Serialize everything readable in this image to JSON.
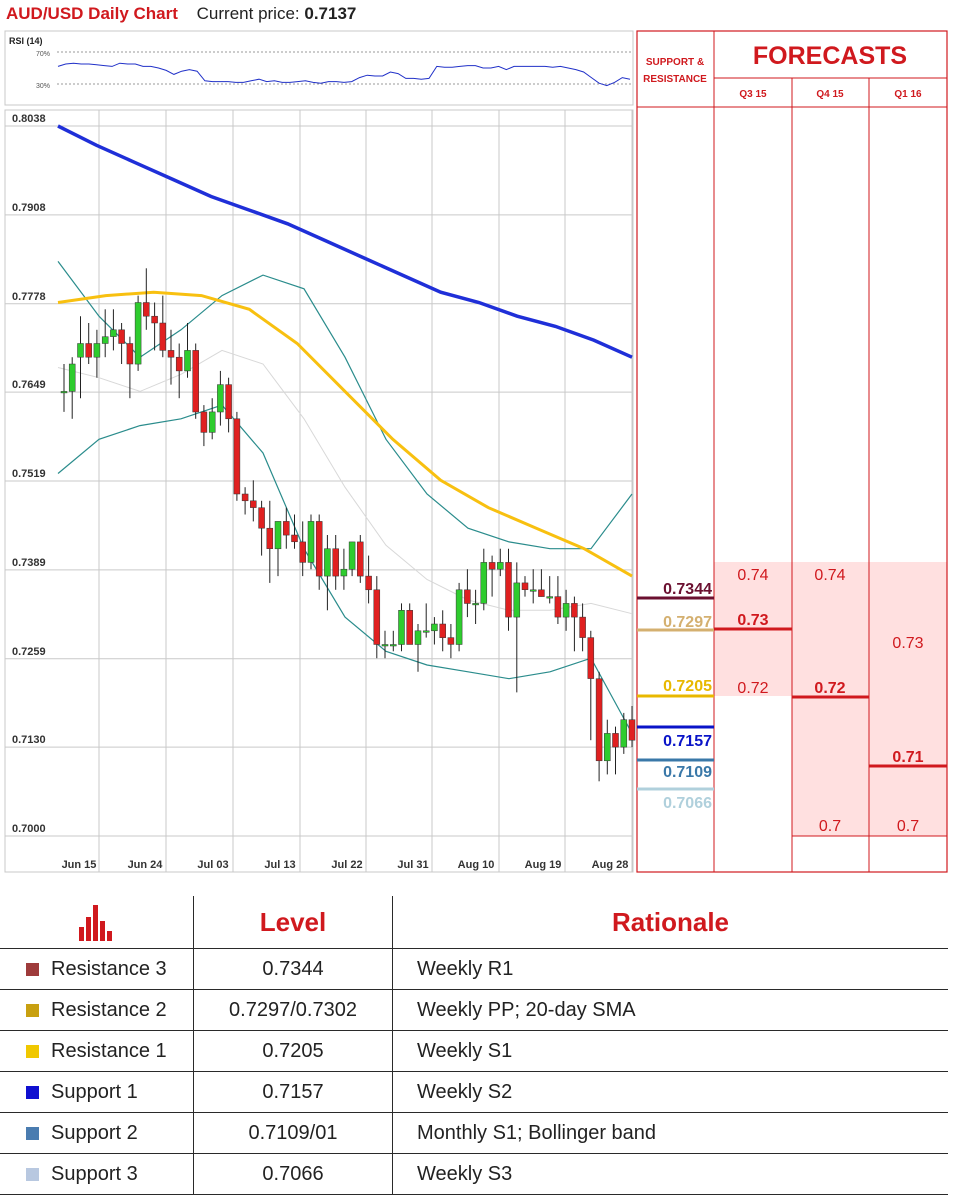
{
  "header": {
    "title": "AUD/USD Daily Chart",
    "price_label": "Current price:",
    "price": "0.7137"
  },
  "colors": {
    "up": "#2ecc2e",
    "down": "#e02020",
    "sma200": "#1f2fd8",
    "sma50": "#f8c010",
    "boll": "#2a8c8c",
    "sma20": "#d0d0d0",
    "accent": "#d0191e"
  },
  "forecasts": {
    "title": "FORECASTS",
    "sr_label": "SUPPORT & RESISTANCE",
    "quarters": [
      "Q3 15",
      "Q4 15",
      "Q1 16"
    ],
    "q3": {
      "high": "0.74",
      "mid": "0.73",
      "low": "0.72"
    },
    "q4": {
      "high": "0.74",
      "mid": "0.72",
      "low": "0.7"
    },
    "q1": {
      "high": "0.73",
      "mid": "0.71",
      "low": "0.7"
    }
  },
  "levels_chart": [
    {
      "value": "0.7344",
      "color": "#6b1030"
    },
    {
      "value": "0.7297",
      "color": "#d4b070"
    },
    {
      "value": "0.7205",
      "color": "#e8b800"
    },
    {
      "value": "0.7157",
      "color": "#0a14c8"
    },
    {
      "value": "0.7109",
      "color": "#3a78a8"
    },
    {
      "value": "0.7066",
      "color": "#b0d0dc"
    }
  ],
  "table": {
    "headers": {
      "level": "Level",
      "rationale": "Rationale"
    },
    "rows": [
      {
        "name": "Resistance 3",
        "level": "0.7344",
        "rationale": "Weekly R1",
        "color": "#9e3b3b"
      },
      {
        "name": "Resistance 2",
        "level": "0.7297/0.7302",
        "rationale": "Weekly PP; 20-day SMA",
        "color": "#c8a010"
      },
      {
        "name": "Resistance 1",
        "level": "0.7205",
        "rationale": "Weekly S1",
        "color": "#f0c800"
      },
      {
        "name": "Support 1",
        "level": "0.7157",
        "rationale": "Weekly S2",
        "color": "#1010d0"
      },
      {
        "name": "Support 2",
        "level": "0.7109/01",
        "rationale": "Monthly S1; Bollinger band",
        "color": "#4a7cb0"
      },
      {
        "name": "Support 3",
        "level": "0.7066",
        "rationale": "Weekly S3",
        "color": "#b8c8e0"
      }
    ]
  },
  "chart_data": [
    {
      "type": "line",
      "title": "RSI (14)",
      "ticks": [
        "70%",
        "30%"
      ],
      "ylim": [
        0,
        100
      ],
      "values": [
        52,
        55,
        56,
        55,
        55,
        54,
        53,
        52,
        56,
        55,
        55,
        52,
        52,
        50,
        47,
        42,
        46,
        48,
        46,
        34,
        33,
        33,
        33,
        32,
        32,
        34,
        36,
        33,
        34,
        32,
        32,
        33,
        34,
        32,
        31,
        33,
        33,
        32,
        33,
        38,
        41,
        40,
        40,
        45,
        43,
        37,
        37,
        36,
        37,
        52,
        51,
        51,
        52,
        53,
        53,
        50,
        50,
        52,
        48,
        52,
        52,
        52,
        52,
        52,
        51,
        52,
        50,
        48,
        45,
        38,
        31,
        28,
        32,
        38,
        36
      ]
    },
    {
      "type": "candlestick",
      "title": "AUD/USD Daily Chart",
      "x_labels": [
        "Jun 15",
        "Jun 24",
        "Jul 03",
        "Jul 13",
        "Jul 22",
        "Jul 31",
        "Aug 10",
        "Aug 19",
        "Aug 28"
      ],
      "y_ticks": [
        "0.8038",
        "0.7908",
        "0.7778",
        "0.7649",
        "0.7519",
        "0.7389",
        "0.7259",
        "0.7130",
        "0.7000"
      ],
      "ylim": [
        0.7,
        0.8038
      ],
      "ohlc": [
        [
          0.765,
          0.769,
          0.762,
          0.765
        ],
        [
          0.765,
          0.77,
          0.761,
          0.769
        ],
        [
          0.77,
          0.776,
          0.764,
          0.772
        ],
        [
          0.772,
          0.775,
          0.769,
          0.77
        ],
        [
          0.77,
          0.774,
          0.767,
          0.772
        ],
        [
          0.772,
          0.777,
          0.77,
          0.773
        ],
        [
          0.773,
          0.777,
          0.771,
          0.774
        ],
        [
          0.774,
          0.775,
          0.769,
          0.772
        ],
        [
          0.772,
          0.773,
          0.764,
          0.769
        ],
        [
          0.769,
          0.779,
          0.768,
          0.778
        ],
        [
          0.778,
          0.783,
          0.774,
          0.776
        ],
        [
          0.776,
          0.778,
          0.771,
          0.775
        ],
        [
          0.775,
          0.779,
          0.77,
          0.771
        ],
        [
          0.771,
          0.774,
          0.766,
          0.77
        ],
        [
          0.77,
          0.772,
          0.764,
          0.768
        ],
        [
          0.768,
          0.775,
          0.767,
          0.771
        ],
        [
          0.771,
          0.772,
          0.761,
          0.762
        ],
        [
          0.762,
          0.763,
          0.757,
          0.759
        ],
        [
          0.759,
          0.764,
          0.758,
          0.762
        ],
        [
          0.762,
          0.768,
          0.76,
          0.766
        ],
        [
          0.766,
          0.767,
          0.759,
          0.761
        ],
        [
          0.761,
          0.762,
          0.749,
          0.75
        ],
        [
          0.75,
          0.751,
          0.747,
          0.749
        ],
        [
          0.749,
          0.752,
          0.746,
          0.748
        ],
        [
          0.748,
          0.749,
          0.741,
          0.745
        ],
        [
          0.745,
          0.749,
          0.737,
          0.742
        ],
        [
          0.742,
          0.746,
          0.738,
          0.746
        ],
        [
          0.746,
          0.748,
          0.742,
          0.744
        ],
        [
          0.744,
          0.747,
          0.742,
          0.743
        ],
        [
          0.743,
          0.746,
          0.738,
          0.74
        ],
        [
          0.74,
          0.747,
          0.739,
          0.746
        ],
        [
          0.746,
          0.747,
          0.736,
          0.738
        ],
        [
          0.738,
          0.744,
          0.733,
          0.742
        ],
        [
          0.742,
          0.744,
          0.736,
          0.738
        ],
        [
          0.738,
          0.742,
          0.736,
          0.739
        ],
        [
          0.739,
          0.743,
          0.738,
          0.743
        ],
        [
          0.743,
          0.744,
          0.737,
          0.738
        ],
        [
          0.738,
          0.741,
          0.734,
          0.736
        ],
        [
          0.736,
          0.738,
          0.726,
          0.728
        ],
        [
          0.728,
          0.73,
          0.726,
          0.728
        ],
        [
          0.728,
          0.73,
          0.727,
          0.728
        ],
        [
          0.728,
          0.734,
          0.727,
          0.733
        ],
        [
          0.733,
          0.734,
          0.728,
          0.728
        ],
        [
          0.728,
          0.731,
          0.724,
          0.73
        ],
        [
          0.73,
          0.734,
          0.729,
          0.73
        ],
        [
          0.73,
          0.732,
          0.728,
          0.731
        ],
        [
          0.731,
          0.733,
          0.727,
          0.729
        ],
        [
          0.729,
          0.731,
          0.726,
          0.728
        ],
        [
          0.728,
          0.737,
          0.727,
          0.736
        ],
        [
          0.736,
          0.739,
          0.732,
          0.734
        ],
        [
          0.734,
          0.736,
          0.731,
          0.734
        ],
        [
          0.734,
          0.742,
          0.733,
          0.74
        ],
        [
          0.74,
          0.741,
          0.735,
          0.739
        ],
        [
          0.739,
          0.742,
          0.738,
          0.74
        ],
        [
          0.74,
          0.742,
          0.73,
          0.732
        ],
        [
          0.732,
          0.74,
          0.721,
          0.737
        ],
        [
          0.737,
          0.738,
          0.735,
          0.736
        ],
        [
          0.736,
          0.739,
          0.734,
          0.736
        ],
        [
          0.736,
          0.739,
          0.735,
          0.735
        ],
        [
          0.735,
          0.738,
          0.734,
          0.735
        ],
        [
          0.735,
          0.738,
          0.731,
          0.732
        ],
        [
          0.732,
          0.736,
          0.73,
          0.734
        ],
        [
          0.734,
          0.735,
          0.727,
          0.732
        ],
        [
          0.732,
          0.734,
          0.727,
          0.729
        ],
        [
          0.729,
          0.73,
          0.714,
          0.723
        ],
        [
          0.723,
          0.724,
          0.708,
          0.711
        ],
        [
          0.711,
          0.717,
          0.709,
          0.715
        ],
        [
          0.715,
          0.716,
          0.709,
          0.713
        ],
        [
          0.713,
          0.718,
          0.712,
          0.717
        ],
        [
          0.717,
          0.719,
          0.713,
          0.714
        ]
      ],
      "series": [
        {
          "name": "",
          "values": [
            0.8038,
            0.801,
            0.7985,
            0.796,
            0.7935,
            0.7915,
            0.7895,
            0.787,
            0.7845,
            0.782,
            0.7795,
            0.778,
            0.776,
            0.7745,
            0.7725,
            0.77
          ]
        },
        {
          "name": "",
          "values": [
            0.778,
            0.779,
            0.7795,
            0.779,
            0.777,
            0.772,
            0.765,
            0.758,
            0.752,
            0.748,
            0.745,
            0.742,
            0.738
          ]
        },
        {
          "name": "",
          "values": [
            0.784,
            0.776,
            0.77,
            0.774,
            0.779,
            0.782,
            0.78,
            0.77,
            0.758,
            0.75,
            0.745,
            0.743,
            0.742,
            0.742,
            0.75
          ]
        },
        {
          "name": "",
          "values": [
            0.753,
            0.758,
            0.76,
            0.761,
            0.763,
            0.756,
            0.742,
            0.732,
            0.727,
            0.725,
            0.724,
            0.723,
            0.724,
            0.726,
            0.715
          ]
        }
      ]
    }
  ]
}
